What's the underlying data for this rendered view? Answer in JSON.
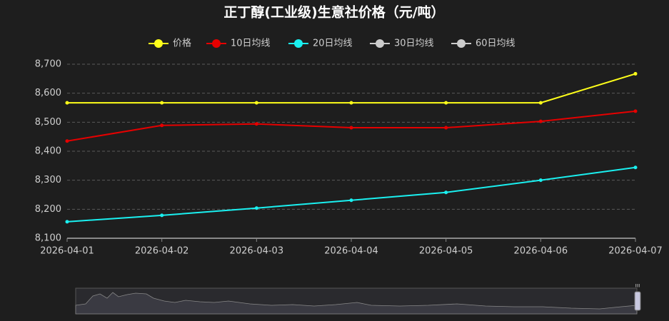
{
  "chart_data": {
    "type": "line",
    "title": "正丁醇(工业级)生意社价格（元/吨）",
    "categories": [
      "2026-04-01",
      "2026-04-02",
      "2026-04-03",
      "2026-04-04",
      "2026-04-05",
      "2026-04-06",
      "2026-04-07"
    ],
    "series": [
      {
        "name": "价格",
        "color": "#ffff1a",
        "values": [
          8567,
          8567,
          8567,
          8567,
          8567,
          8567,
          8667
        ]
      },
      {
        "name": "10日均线",
        "color": "#e60000",
        "values": [
          8435,
          8489,
          8494,
          8481,
          8481,
          8503,
          8538
        ]
      },
      {
        "name": "20日均线",
        "color": "#1af0f0",
        "values": [
          8157,
          8179,
          8204,
          8231,
          8258,
          8300,
          8344
        ]
      },
      {
        "name": "30日均线",
        "color": "#cccccc",
        "values": [
          null,
          null,
          null,
          null,
          null,
          null,
          null
        ]
      },
      {
        "name": "60日均线",
        "color": "#cccccc",
        "values": [
          null,
          null,
          null,
          null,
          null,
          null,
          null
        ]
      }
    ],
    "ylim": [
      8100,
      8700
    ],
    "yticks": [
      {
        "value": 8100,
        "label": "8,100"
      },
      {
        "value": 8200,
        "label": "8,200"
      },
      {
        "value": 8300,
        "label": "8,300"
      },
      {
        "value": 8400,
        "label": "8,400"
      },
      {
        "value": 8500,
        "label": "8,500"
      },
      {
        "value": 8600,
        "label": "8,600"
      },
      {
        "value": 8700,
        "label": "8,700"
      }
    ],
    "grid": true
  }
}
